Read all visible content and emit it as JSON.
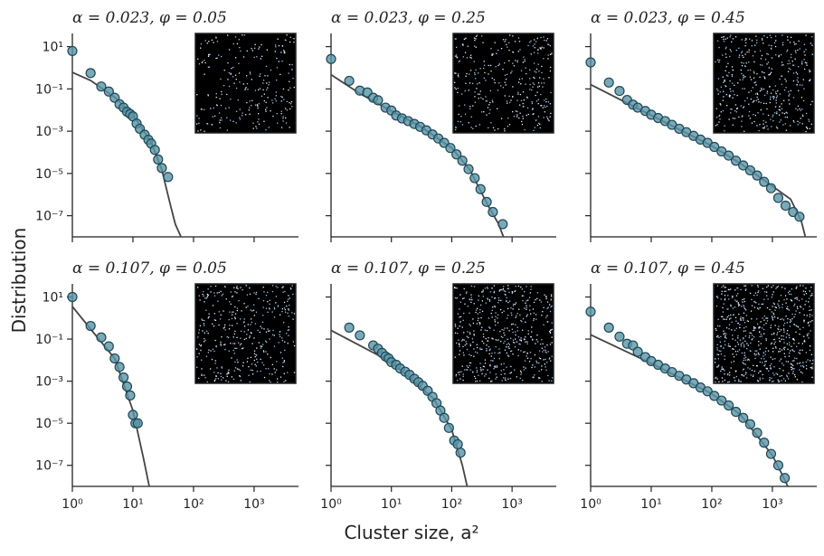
{
  "figure": {
    "xlabel": "Cluster size, a²",
    "ylabel": "Distribution"
  },
  "chart_data": [
    {
      "type": "scatter",
      "title": "α = 0.023, φ = 0.05",
      "xscale": "log",
      "yscale": "log",
      "color": "#5a93a6",
      "edge_color": "#1d4856",
      "line_color": "#444444",
      "xlim": [
        1,
        5400
      ],
      "ylim": [
        1e-08,
        42
      ],
      "xticks": [
        1,
        10,
        100,
        1000
      ],
      "yticks": [
        {
          "value": 10,
          "label": "10¹"
        },
        {
          "value": 0.1,
          "label": "10⁻¹"
        },
        {
          "value": 0.001,
          "label": "10⁻³"
        },
        {
          "value": 1e-05,
          "label": "10⁻⁵"
        },
        {
          "value": 1e-07,
          "label": "10⁻⁷"
        }
      ],
      "x": [
        1,
        2,
        3,
        4,
        5,
        6,
        7,
        8,
        9,
        10,
        11.5,
        13,
        15.6,
        18,
        20,
        23,
        26,
        30,
        38
      ],
      "values": [
        6.2,
        0.56,
        0.13,
        0.075,
        0.038,
        0.019,
        0.013,
        0.0083,
        0.0065,
        0.005,
        0.0023,
        0.0013,
        0.00068,
        0.00039,
        0.00026,
        0.00013,
        4.6e-05,
        1.8e-05,
        6.8e-06
      ],
      "fit": {
        "x": [
          1,
          2,
          5,
          10,
          20,
          30,
          40,
          50,
          62
        ],
        "values": [
          0.6,
          0.25,
          0.04,
          0.006,
          0.0003,
          1.5e-05,
          5e-07,
          4e-08,
          1e-08
        ]
      }
    },
    {
      "type": "scatter",
      "title": "α = 0.023, φ = 0.25",
      "xscale": "log",
      "yscale": "log",
      "color": "#5a93a6",
      "edge_color": "#1d4856",
      "line_color": "#444444",
      "xlim": [
        1,
        5400
      ],
      "ylim": [
        1e-08,
        42
      ],
      "xticks": [
        1,
        10,
        100,
        1000
      ],
      "yticks": [
        10,
        0.1,
        0.001,
        1e-05,
        1e-07
      ],
      "x": [
        1,
        2,
        3,
        4,
        5,
        6,
        8,
        10,
        12,
        15,
        19,
        24,
        30,
        38,
        48,
        60,
        75,
        95,
        120,
        150,
        190,
        240,
        300,
        380,
        480,
        700
      ],
      "values": [
        2.6,
        0.24,
        0.083,
        0.068,
        0.038,
        0.029,
        0.013,
        0.0095,
        0.0055,
        0.004,
        0.003,
        0.0022,
        0.0016,
        0.0011,
        0.0007,
        0.00045,
        0.00028,
        0.00016,
        8e-05,
        4e-05,
        1.6e-05,
        6e-06,
        1.8e-06,
        4.5e-07,
        1.5e-07,
        4e-08
      ],
      "fit": {
        "x": [
          1,
          3,
          10,
          30,
          100,
          200,
          400,
          600,
          720
        ],
        "values": [
          0.47,
          0.06,
          0.009,
          0.0017,
          0.00016,
          1.5e-05,
          3e-07,
          4e-08,
          1e-08
        ]
      }
    },
    {
      "type": "scatter",
      "title": "α = 0.023, φ = 0.45",
      "xscale": "log",
      "yscale": "log",
      "color": "#5a93a6",
      "edge_color": "#1d4856",
      "line_color": "#444444",
      "xlim": [
        1,
        5400
      ],
      "ylim": [
        1e-08,
        42
      ],
      "xticks": [
        1,
        10,
        100,
        1000
      ],
      "yticks": [
        10,
        0.1,
        0.001,
        1e-05,
        1e-07
      ],
      "x": [
        1,
        2,
        3,
        4,
        5,
        6,
        8,
        10,
        13,
        17,
        22,
        29,
        38,
        50,
        65,
        85,
        110,
        145,
        190,
        250,
        330,
        430,
        560,
        730,
        950,
        1250,
        1650,
        2200,
        2800
      ],
      "values": [
        1.8,
        0.2,
        0.08,
        0.03,
        0.018,
        0.013,
        0.009,
        0.006,
        0.0042,
        0.003,
        0.002,
        0.0013,
        0.0009,
        0.0006,
        0.0004,
        0.00028,
        0.00018,
        0.00011,
        7e-05,
        4e-05,
        2.4e-05,
        1.4e-05,
        8e-06,
        4e-06,
        2e-06,
        7e-07,
        3e-07,
        1.5e-07,
        9e-08
      ],
      "fit": {
        "x": [
          1,
          10,
          100,
          300,
          1000,
          2000,
          3000,
          3500
        ],
        "values": [
          0.16,
          0.0056,
          0.0002,
          2.9e-05,
          2.5e-06,
          6e-07,
          5.6e-08,
          1e-08
        ]
      }
    },
    {
      "type": "scatter",
      "title": "α = 0.107, φ = 0.05",
      "xscale": "log",
      "yscale": "log",
      "color": "#5a93a6",
      "edge_color": "#1d4856",
      "line_color": "#444444",
      "xlim": [
        1,
        5400
      ],
      "ylim": [
        1e-08,
        42
      ],
      "xticks": [
        {
          "value": 1,
          "label": "10⁰"
        },
        {
          "value": 10,
          "label": "10¹"
        },
        {
          "value": 100,
          "label": "10²"
        },
        {
          "value": 1000,
          "label": "10³"
        }
      ],
      "yticks": [
        {
          "value": 10,
          "label": "10¹"
        },
        {
          "value": 0.1,
          "label": "10⁻¹"
        },
        {
          "value": 0.001,
          "label": "10⁻³"
        },
        {
          "value": 1e-05,
          "label": "10⁻⁵"
        },
        {
          "value": 1e-07,
          "label": "10⁻⁷"
        }
      ],
      "x": [
        1,
        2,
        3,
        4,
        5,
        6,
        7,
        8,
        9,
        10,
        11,
        12
      ],
      "values": [
        10,
        0.42,
        0.12,
        0.045,
        0.012,
        0.0047,
        0.0015,
        0.00056,
        0.00021,
        2.5e-05,
        1e-05,
        1e-05
      ],
      "fit": {
        "x": [
          1,
          2,
          5,
          10,
          15,
          18.6
        ],
        "values": [
          3.5,
          0.3,
          0.012,
          4e-05,
          2e-07,
          1e-08
        ]
      }
    },
    {
      "type": "scatter",
      "title": "α = 0.107, φ = 0.25",
      "xscale": "log",
      "yscale": "log",
      "color": "#5a93a6",
      "edge_color": "#1d4856",
      "line_color": "#444444",
      "xlim": [
        1,
        5400
      ],
      "ylim": [
        1e-08,
        42
      ],
      "xticks": [
        {
          "value": 1,
          "label": "10⁰"
        },
        {
          "value": 10,
          "label": "10¹"
        },
        {
          "value": 100,
          "label": "10²"
        },
        {
          "value": 1000,
          "label": "10³"
        }
      ],
      "yticks": [
        10,
        0.1,
        0.001,
        1e-05,
        1e-07
      ],
      "x": [
        2,
        3,
        5,
        6,
        7,
        8,
        9,
        10,
        12,
        14,
        17,
        20,
        24,
        28,
        33,
        40,
        48,
        56,
        65,
        75,
        90,
        110,
        126,
        140
      ],
      "values": [
        0.35,
        0.15,
        0.05,
        0.035,
        0.022,
        0.015,
        0.012,
        0.008,
        0.006,
        0.004,
        0.0028,
        0.002,
        0.0013,
        0.0009,
        0.0006,
        0.00035,
        0.00018,
        9e-05,
        4e-05,
        1.8e-05,
        6e-06,
        1.5e-06,
        1e-06,
        4e-07
      ],
      "fit": {
        "x": [
          1,
          10,
          50,
          100,
          150,
          180
        ],
        "values": [
          0.26,
          0.008,
          0.00015,
          5e-06,
          1e-07,
          1e-08
        ]
      }
    },
    {
      "type": "scatter",
      "title": "α = 0.107, φ = 0.45",
      "xscale": "log",
      "yscale": "log",
      "color": "#5a93a6",
      "edge_color": "#1d4856",
      "line_color": "#444444",
      "xlim": [
        1,
        5400
      ],
      "ylim": [
        1e-08,
        42
      ],
      "xticks": [
        {
          "value": 1,
          "label": "10⁰"
        },
        {
          "value": 10,
          "label": "10¹"
        },
        {
          "value": 100,
          "label": "10²"
        },
        {
          "value": 1000,
          "label": "10³"
        }
      ],
      "yticks": [
        10,
        0.1,
        0.001,
        1e-05,
        1e-07
      ],
      "x": [
        1,
        2,
        3,
        4,
        5,
        6,
        8,
        10,
        13,
        17,
        22,
        29,
        38,
        50,
        65,
        85,
        110,
        145,
        190,
        250,
        330,
        430,
        560,
        730,
        950,
        1250,
        1600
      ],
      "values": [
        2,
        0.35,
        0.13,
        0.06,
        0.05,
        0.025,
        0.014,
        0.009,
        0.006,
        0.004,
        0.0027,
        0.0018,
        0.0012,
        0.0008,
        0.0005,
        0.00033,
        0.0002,
        0.00012,
        7e-05,
        3.5e-05,
        1.8e-05,
        9e-06,
        3.5e-06,
        1.2e-06,
        3.5e-07,
        1e-07,
        2.5e-08
      ],
      "fit": {
        "x": [
          1,
          10,
          100,
          300,
          1000,
          1500,
          1800
        ],
        "values": [
          0.16,
          0.007,
          0.00025,
          2.5e-05,
          3e-07,
          3e-08,
          1e-08
        ]
      }
    }
  ]
}
